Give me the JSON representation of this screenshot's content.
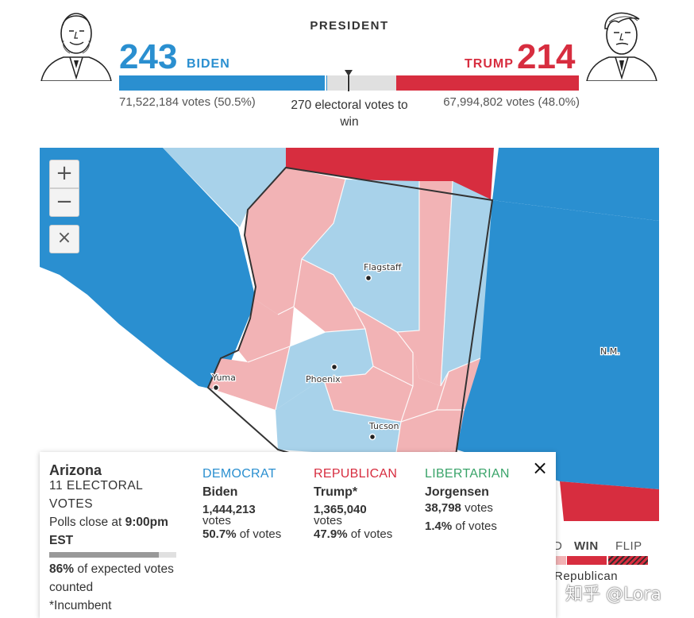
{
  "header": {
    "title": "PRESIDENT",
    "democrat": {
      "electoral_votes": "243",
      "name": "BIDEN",
      "popular_votes": "71,522,184 votes (50.5%)",
      "color": "#2a8fd0",
      "bar_fraction": 0.4519
    },
    "republican": {
      "electoral_votes": "214",
      "name": "TRUMP",
      "popular_votes": "67,994,802 votes (48.0%)",
      "color": "#d72d3f",
      "bar_fraction": 0.3977
    },
    "threshold_label": "270 electoral votes to win"
  },
  "map": {
    "controls": {
      "zoom_in": "+",
      "zoom_out": "−",
      "close": "×"
    },
    "cities": [
      "Flagstaff",
      "Phoenix",
      "Yuma",
      "Tucson"
    ],
    "state_abbrev": "N.M.",
    "colors": {
      "dem_win": "#2a8fd0",
      "dem_lead": "#a8d2ea",
      "rep_win": "#d72d3f",
      "rep_lead": "#f2b3b5"
    }
  },
  "legend": {
    "lead_partial": "D",
    "win": "WIN",
    "flip": "FLIP",
    "party_label": "Republican"
  },
  "tooltip": {
    "state": "Arizona",
    "electoral": "11 ELECTORAL VOTES",
    "polls_close_prefix": "Polls close at ",
    "polls_close_time": "9:00pm EST",
    "expected_pct": "86%",
    "expected_suffix": " of expected votes counted",
    "expected_fraction": 0.86,
    "incumbent_note": "*Incumbent",
    "candidates": [
      {
        "party": "DEMOCRAT",
        "name": "Biden",
        "votes": "1,444,213",
        "votes_unit": "votes",
        "pct": "50.7%",
        "pct_suffix": "of votes",
        "color": "#2a8fd0"
      },
      {
        "party": "REPUBLICAN",
        "name": "Trump*",
        "votes": "1,365,040",
        "votes_unit": "votes",
        "pct": "47.9%",
        "pct_suffix": "of votes",
        "color": "#d72d3f"
      },
      {
        "party": "LIBERTARIAN",
        "name": "Jorgensen",
        "votes": "38,798",
        "votes_unit": "votes",
        "pct": "1.4%",
        "pct_suffix": "of votes",
        "color": "#3aa46a"
      }
    ]
  },
  "watermark": "知乎 @Lora"
}
